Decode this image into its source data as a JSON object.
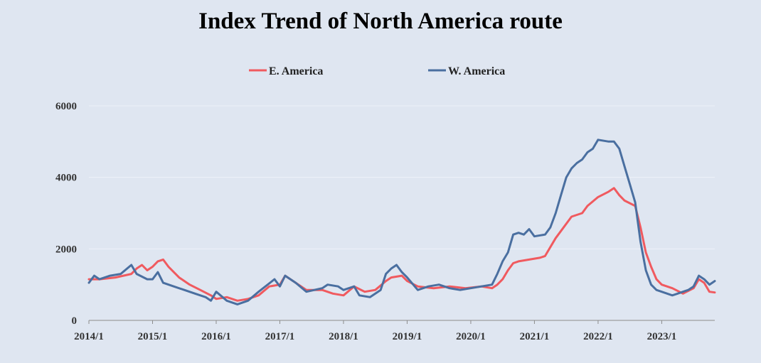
{
  "chart_data": {
    "type": "line",
    "title": "Index Trend of North America route",
    "xlabel": "",
    "ylabel": "",
    "ylim": [
      0,
      6000
    ],
    "yticks": [
      0,
      2000,
      4000,
      6000
    ],
    "xlim": [
      "2014/1",
      "2023/11"
    ],
    "xticks": [
      "2014/1",
      "2015/1",
      "2016/1",
      "2017/1",
      "2018/1",
      "2019/1",
      "2020/1",
      "2021/1",
      "2022/1",
      "2023/1"
    ],
    "grid": "horizontal",
    "legend_position": "top",
    "series": [
      {
        "name": "E. America",
        "color": "#f05a5f",
        "points": [
          [
            "2014/1",
            1150
          ],
          [
            "2014/3",
            1150
          ],
          [
            "2014/6",
            1200
          ],
          [
            "2014/9",
            1300
          ],
          [
            "2014/10",
            1450
          ],
          [
            "2014/11",
            1550
          ],
          [
            "2014/12",
            1400
          ],
          [
            "2015/1",
            1500
          ],
          [
            "2015/2",
            1650
          ],
          [
            "2015/3",
            1700
          ],
          [
            "2015/4",
            1500
          ],
          [
            "2015/6",
            1200
          ],
          [
            "2015/8",
            1000
          ],
          [
            "2015/10",
            850
          ],
          [
            "2015/12",
            700
          ],
          [
            "2016/1",
            600
          ],
          [
            "2016/3",
            650
          ],
          [
            "2016/5",
            550
          ],
          [
            "2016/7",
            600
          ],
          [
            "2016/9",
            700
          ],
          [
            "2016/11",
            950
          ],
          [
            "2017/1",
            1000
          ],
          [
            "2017/2",
            1250
          ],
          [
            "2017/4",
            1050
          ],
          [
            "2017/6",
            850
          ],
          [
            "2017/9",
            850
          ],
          [
            "2017/11",
            750
          ],
          [
            "2018/1",
            700
          ],
          [
            "2018/3",
            950
          ],
          [
            "2018/5",
            800
          ],
          [
            "2018/7",
            850
          ],
          [
            "2018/9",
            1100
          ],
          [
            "2018/10",
            1200
          ],
          [
            "2018/12",
            1250
          ],
          [
            "2019/1",
            1100
          ],
          [
            "2019/3",
            950
          ],
          [
            "2019/6",
            900
          ],
          [
            "2019/9",
            950
          ],
          [
            "2019/12",
            900
          ],
          [
            "2020/3",
            950
          ],
          [
            "2020/5",
            900
          ],
          [
            "2020/6",
            1000
          ],
          [
            "2020/7",
            1150
          ],
          [
            "2020/8",
            1400
          ],
          [
            "2020/9",
            1600
          ],
          [
            "2020/10",
            1650
          ],
          [
            "2020/12",
            1700
          ],
          [
            "2021/2",
            1750
          ],
          [
            "2021/3",
            1800
          ],
          [
            "2021/5",
            2300
          ],
          [
            "2021/6",
            2500
          ],
          [
            "2021/8",
            2900
          ],
          [
            "2021/10",
            3000
          ],
          [
            "2021/11",
            3200
          ],
          [
            "2022/1",
            3450
          ],
          [
            "2022/3",
            3600
          ],
          [
            "2022/4",
            3700
          ],
          [
            "2022/5",
            3500
          ],
          [
            "2022/6",
            3350
          ],
          [
            "2022/8",
            3200
          ],
          [
            "2022/9",
            2600
          ],
          [
            "2022/10",
            1900
          ],
          [
            "2022/11",
            1500
          ],
          [
            "2022/12",
            1150
          ],
          [
            "2023/1",
            1000
          ],
          [
            "2023/3",
            900
          ],
          [
            "2023/5",
            750
          ],
          [
            "2023/7",
            900
          ],
          [
            "2023/8",
            1150
          ],
          [
            "2023/9",
            1050
          ],
          [
            "2023/10",
            800
          ],
          [
            "2023/11",
            780
          ]
        ]
      },
      {
        "name": "W. America",
        "color": "#4a6fa0",
        "points": [
          [
            "2014/1",
            1050
          ],
          [
            "2014/2",
            1250
          ],
          [
            "2014/3",
            1150
          ],
          [
            "2014/5",
            1250
          ],
          [
            "2014/7",
            1300
          ],
          [
            "2014/9",
            1550
          ],
          [
            "2014/10",
            1300
          ],
          [
            "2014/12",
            1150
          ],
          [
            "2015/1",
            1150
          ],
          [
            "2015/2",
            1350
          ],
          [
            "2015/3",
            1050
          ],
          [
            "2015/5",
            950
          ],
          [
            "2015/7",
            850
          ],
          [
            "2015/9",
            750
          ],
          [
            "2015/11",
            650
          ],
          [
            "2015/12",
            550
          ],
          [
            "2016/1",
            800
          ],
          [
            "2016/3",
            550
          ],
          [
            "2016/5",
            450
          ],
          [
            "2016/7",
            550
          ],
          [
            "2016/9",
            800
          ],
          [
            "2016/12",
            1150
          ],
          [
            "2017/1",
            950
          ],
          [
            "2017/2",
            1250
          ],
          [
            "2017/4",
            1050
          ],
          [
            "2017/6",
            800
          ],
          [
            "2017/9",
            900
          ],
          [
            "2017/10",
            1000
          ],
          [
            "2017/12",
            950
          ],
          [
            "2018/1",
            850
          ],
          [
            "2018/3",
            950
          ],
          [
            "2018/4",
            700
          ],
          [
            "2018/6",
            650
          ],
          [
            "2018/8",
            850
          ],
          [
            "2018/9",
            1300
          ],
          [
            "2018/10",
            1450
          ],
          [
            "2018/11",
            1550
          ],
          [
            "2018/12",
            1350
          ],
          [
            "2019/1",
            1200
          ],
          [
            "2019/3",
            850
          ],
          [
            "2019/5",
            950
          ],
          [
            "2019/7",
            1000
          ],
          [
            "2019/9",
            900
          ],
          [
            "2019/11",
            850
          ],
          [
            "2020/1",
            900
          ],
          [
            "2020/3",
            950
          ],
          [
            "2020/5",
            1000
          ],
          [
            "2020/6",
            1300
          ],
          [
            "2020/7",
            1650
          ],
          [
            "2020/8",
            1900
          ],
          [
            "2020/9",
            2400
          ],
          [
            "2020/10",
            2450
          ],
          [
            "2020/11",
            2400
          ],
          [
            "2020/12",
            2550
          ],
          [
            "2021/1",
            2350
          ],
          [
            "2021/3",
            2400
          ],
          [
            "2021/4",
            2600
          ],
          [
            "2021/5",
            3000
          ],
          [
            "2021/6",
            3500
          ],
          [
            "2021/7",
            4000
          ],
          [
            "2021/8",
            4250
          ],
          [
            "2021/9",
            4400
          ],
          [
            "2021/10",
            4500
          ],
          [
            "2021/11",
            4700
          ],
          [
            "2021/12",
            4800
          ],
          [
            "2022/1",
            5050
          ],
          [
            "2022/3",
            5000
          ],
          [
            "2022/4",
            5000
          ],
          [
            "2022/5",
            4800
          ],
          [
            "2022/6",
            4300
          ],
          [
            "2022/7",
            3800
          ],
          [
            "2022/8",
            3300
          ],
          [
            "2022/9",
            2200
          ],
          [
            "2022/10",
            1400
          ],
          [
            "2022/11",
            1000
          ],
          [
            "2022/12",
            850
          ],
          [
            "2023/1",
            800
          ],
          [
            "2023/3",
            700
          ],
          [
            "2023/4",
            750
          ],
          [
            "2023/5",
            800
          ],
          [
            "2023/6",
            850
          ],
          [
            "2023/7",
            950
          ],
          [
            "2023/8",
            1250
          ],
          [
            "2023/9",
            1150
          ],
          [
            "2023/10",
            1000
          ],
          [
            "2023/11",
            1100
          ]
        ]
      }
    ]
  }
}
